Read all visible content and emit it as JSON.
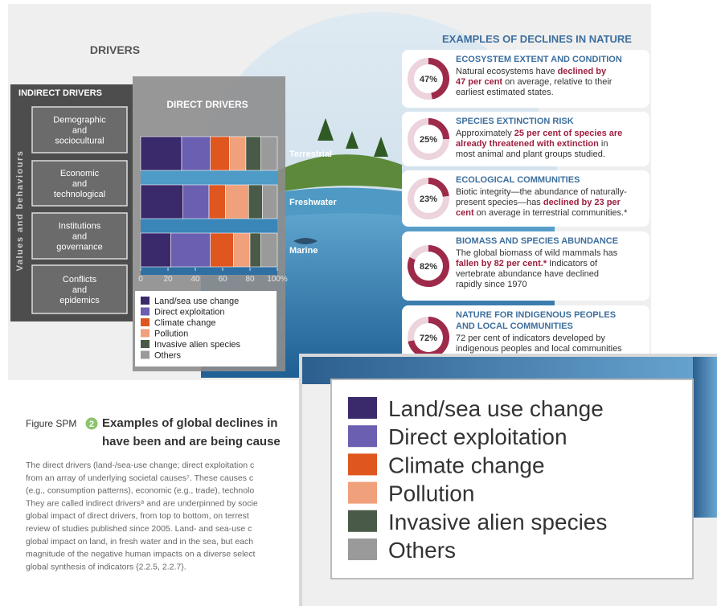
{
  "drivers_title": "DRIVERS",
  "indirect_drivers": {
    "title": "INDIRECT DRIVERS",
    "side_label": "Values and behaviours",
    "items": [
      [
        "Demographic",
        "and",
        "sociocultural"
      ],
      [
        "Economic",
        "and",
        "technological"
      ],
      [
        "Institutions",
        "and",
        "governance"
      ],
      [
        "Conflicts",
        "and",
        "epidemics"
      ]
    ]
  },
  "direct_drivers_title": "DIRECT DRIVERS",
  "chart_data": {
    "type": "stacked-barh",
    "categories": [
      "Terrestrial",
      "Freshwater",
      "Marine"
    ],
    "series": [
      {
        "name": "Land/sea use change",
        "color": "#3b2a6b",
        "values": [
          30,
          31,
          22
        ]
      },
      {
        "name": "Direct exploitation",
        "color": "#6a5fb0",
        "values": [
          21,
          19,
          29
        ]
      },
      {
        "name": "Climate change",
        "color": "#e0561f",
        "values": [
          14,
          12,
          17
        ]
      },
      {
        "name": "Pollution",
        "color": "#f0a07a",
        "values": [
          12,
          17,
          12
        ]
      },
      {
        "name": "Invasive alien species",
        "color": "#4a5a48",
        "values": [
          11,
          10,
          8
        ]
      },
      {
        "name": "Others",
        "color": "#9a9a9a",
        "values": [
          12,
          11,
          12
        ]
      }
    ],
    "xlim": [
      0,
      100
    ],
    "xticks": [
      0,
      20,
      40,
      60,
      80,
      {
        "value": 100,
        "label": "100%"
      }
    ]
  },
  "declines": {
    "title": "EXAMPLES OF DECLINES IN NATURE",
    "items": [
      {
        "title": [
          "ECOSYSTEM EXTENT AND CONDITION"
        ],
        "percent": {
          "value": 47,
          "label": "47%"
        },
        "lines": [
          [
            {
              "text": "Natural ecosystems have "
            },
            {
              "text": "declined by",
              "emphasis": true
            }
          ],
          [
            {
              "text": "47 per cent",
              "emphasis": true
            },
            {
              "text": " on average, relative to their"
            }
          ],
          [
            {
              "text": "earliest estimated states."
            }
          ]
        ]
      },
      {
        "title": [
          "SPECIES EXTINCTION RISK"
        ],
        "percent": {
          "value": 25,
          "label": "25%"
        },
        "lines": [
          [
            {
              "text": "Approximately "
            },
            {
              "text": "25 per cent of species are",
              "emphasis": true
            }
          ],
          [
            {
              "text": "already threatened with extinction",
              "emphasis": true
            },
            {
              "text": " in"
            }
          ],
          [
            {
              "text": "most animal and plant groups studied."
            }
          ]
        ]
      },
      {
        "title": [
          "ECOLOGICAL COMMUNITIES"
        ],
        "percent": {
          "value": 23,
          "label": "23%"
        },
        "lines": [
          [
            {
              "text": "Biotic integrity—the abundance of naturally-"
            }
          ],
          [
            {
              "text": "present species—has "
            },
            {
              "text": "declined by 23 per",
              "emphasis": true
            }
          ],
          [
            {
              "text": "cent",
              "emphasis": true
            },
            {
              "text": " on average in terrestrial communities.*"
            }
          ]
        ]
      },
      {
        "title": [
          "BIOMASS AND SPECIES ABUNDANCE"
        ],
        "percent": {
          "value": 82,
          "label": "82%"
        },
        "lines": [
          [
            {
              "text": "The global biomass of wild mammals has"
            }
          ],
          [
            {
              "text": "fallen by 82 per cent.*",
              "emphasis": true
            },
            {
              "text": " Indicators of"
            }
          ],
          [
            {
              "text": "vertebrate abundance have declined"
            }
          ],
          [
            {
              "text": "rapidly since 1970"
            }
          ]
        ]
      },
      {
        "title": [
          "NATURE FOR INDIGENOUS PEOPLES",
          "AND LOCAL COMMUNITIES"
        ],
        "percent": {
          "value": 72,
          "label": "72%"
        },
        "lines": [
          [
            {
              "text": "72 per cent of indicators developed by"
            }
          ],
          [
            {
              "text": "indigenous peoples and local communities"
            }
          ]
        ]
      }
    ]
  },
  "caption": {
    "label": "Figure SPM",
    "number": "2",
    "title_lines": [
      "Examples of global declines in",
      "have been and are being cause"
    ],
    "body_lines": [
      "The direct drivers (land-/sea-use change; direct exploitation c",
      "from an array of underlying societal causes⁷. These causes c",
      "(e.g., consumption patterns), economic (e.g., trade), technolo",
      "They are called indirect drivers⁸ and are underpinned by socie",
      "global impact of direct drivers, from top to bottom, on terrest",
      "review of studies published since 2005. Land- and sea-use c",
      "global impact on land, in fresh water and in the sea, but each",
      "magnitude of the negative human impacts on a diverse select",
      "global synthesis of indicators {2.2.5, 2.2.7}."
    ]
  }
}
